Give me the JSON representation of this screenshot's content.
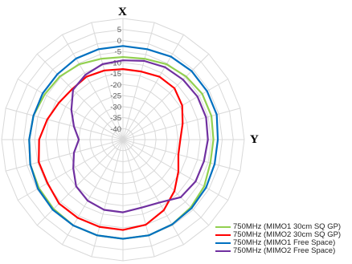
{
  "chart_data": {
    "type": "radar",
    "axis_titles": {
      "top": "X",
      "right": "Y"
    },
    "radial_ticks": [
      "5",
      "0",
      "-5",
      "-10",
      "-15",
      "-20",
      "-25",
      "-30",
      "-35",
      "-40"
    ],
    "rmin": -45,
    "rmax": 10,
    "spokes": 24,
    "angle_unit": "degrees clockwise from top",
    "grid": true,
    "legend_position": "bottom-right",
    "series": [
      {
        "name": "750MHz (MIMO1 30cm SQ GP)",
        "color": "#92d050",
        "theta": [
          0,
          15,
          30,
          45,
          60,
          75,
          90,
          105,
          120,
          135,
          150,
          165,
          180,
          195,
          210,
          225,
          240,
          255,
          270,
          285,
          300,
          315,
          330,
          345
        ],
        "r": [
          -7.5,
          -7,
          -5.5,
          -4.5,
          -3.5,
          -3.5,
          -4,
          -4,
          -2.5,
          -1.5,
          -0.5,
          0,
          0,
          0,
          0,
          -0.5,
          -1,
          -1.5,
          -2.5,
          -3,
          -4,
          -4.5,
          -5.5,
          -7
        ]
      },
      {
        "name": "750MHz (MIMO2 30cm SQ GP)",
        "color": "#ff0000",
        "theta": [
          0,
          15,
          30,
          45,
          60,
          75,
          90,
          105,
          120,
          135,
          150,
          165,
          180,
          195,
          210,
          225,
          240,
          255,
          270,
          285,
          300,
          315,
          330,
          345
        ],
        "r": [
          -13,
          -13,
          -12,
          -12,
          -14,
          -17,
          -19,
          -19,
          -16,
          -12,
          -8,
          -5,
          -4,
          -4,
          -4,
          -4,
          -5.5,
          -5.5,
          -7,
          -9.5,
          -11.5,
          -12.5,
          -12,
          -12.5
        ]
      },
      {
        "name": "750MHz (MIMO1 Free Space)",
        "color": "#0070c0",
        "theta": [
          0,
          15,
          30,
          45,
          60,
          75,
          90,
          105,
          120,
          135,
          150,
          165,
          180,
          195,
          210,
          225,
          240,
          255,
          270,
          285,
          300,
          315,
          330,
          345
        ],
        "r": [
          -2.5,
          -2.5,
          -1.5,
          -1,
          -1,
          -1,
          -2,
          -2,
          -1.5,
          -1,
          -0.5,
          0,
          0,
          0,
          0,
          0,
          -0.5,
          -1.5,
          -2.5,
          -3,
          -3,
          -3,
          -2.5,
          -2.5
        ]
      },
      {
        "name": "750MHz (MIMO2 Free Space)",
        "color": "#7030a0",
        "theta": [
          0,
          15,
          30,
          45,
          60,
          75,
          90,
          105,
          120,
          135,
          150,
          165,
          180,
          195,
          210,
          225,
          240,
          255,
          270,
          285,
          300,
          315,
          330,
          345
        ],
        "r": [
          -9,
          -8,
          -7,
          -6.5,
          -6,
          -6,
          -6.5,
          -7,
          -7,
          -8,
          -12,
          -13,
          -12,
          -12,
          -13,
          -15,
          -19,
          -22,
          -25,
          -22,
          -18,
          -13,
          -11,
          -9.5
        ]
      }
    ]
  }
}
